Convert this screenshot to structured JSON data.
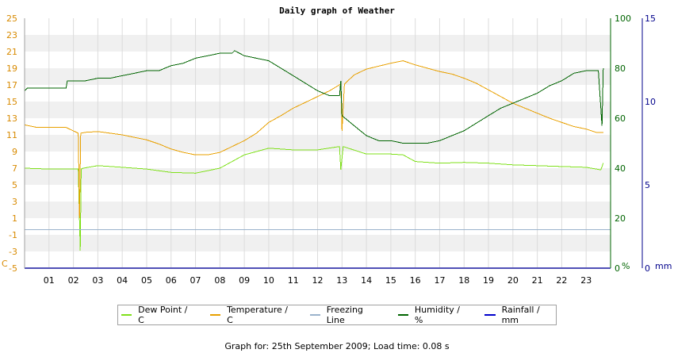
{
  "chart_data": {
    "type": "line",
    "title": "Daily graph of Weather",
    "x_ticks": [
      "01",
      "02",
      "03",
      "04",
      "05",
      "06",
      "07",
      "08",
      "09",
      "10",
      "11",
      "12",
      "13",
      "14",
      "15",
      "16",
      "17",
      "18",
      "19",
      "20",
      "21",
      "22",
      "23"
    ],
    "xlim": [
      0,
      24
    ],
    "axes": {
      "left": {
        "unit_label": "C",
        "ylim": [
          -5,
          25
        ],
        "ticks": [
          "25",
          "23",
          "21",
          "19",
          "17",
          "15",
          "13",
          "11",
          "9",
          "7",
          "5",
          "3",
          "1",
          "-1",
          "-3",
          "-5"
        ],
        "color": "#d88a00"
      },
      "right1": {
        "unit_label": "%",
        "ylim": [
          0,
          100
        ],
        "ticks": [
          "100",
          "80",
          "60",
          "40",
          "20",
          "0"
        ],
        "color": "#006400"
      },
      "right2": {
        "unit_label": "mm",
        "ylim": [
          0,
          15
        ],
        "ticks": [
          "15",
          "10",
          "5",
          "0"
        ],
        "color": "#00008b"
      }
    },
    "series": [
      {
        "name": "Dew Point / C",
        "axis": "left",
        "color": "#7fe01a",
        "x": [
          0,
          1,
          2,
          2.2,
          2.28,
          2.32,
          2.4,
          3,
          4,
          5,
          6,
          7,
          8,
          9,
          10,
          11,
          12,
          12.9,
          12.95,
          13.05,
          14,
          15,
          15.5,
          16,
          17,
          18,
          19,
          20,
          21,
          22,
          23,
          23.6,
          23.7
        ],
        "y": [
          7.0,
          6.9,
          6.9,
          6.9,
          -2.9,
          6.9,
          7.0,
          7.3,
          7.1,
          6.9,
          6.5,
          6.4,
          7.0,
          8.6,
          9.4,
          9.2,
          9.2,
          9.6,
          6.8,
          9.6,
          8.7,
          8.7,
          8.6,
          7.8,
          7.6,
          7.7,
          7.6,
          7.4,
          7.3,
          7.2,
          7.1,
          6.8,
          7.6
        ]
      },
      {
        "name": "Temperature / C",
        "axis": "left",
        "color": "#e8a000",
        "x": [
          0,
          0.5,
          1,
          1.7,
          2.2,
          2.25,
          2.3,
          2.5,
          3,
          3.5,
          4,
          5,
          5.5,
          6,
          6.5,
          7,
          7.5,
          8,
          8.5,
          9,
          9.5,
          10,
          10.5,
          11,
          11.5,
          12,
          12.5,
          12.95,
          13.0,
          13.1,
          13.5,
          14,
          15,
          15.5,
          16,
          16.5,
          17,
          17.5,
          18,
          18.5,
          19,
          19.5,
          20,
          20.5,
          21,
          21.5,
          22,
          22.5,
          23,
          23.4,
          23.7
        ],
        "y": [
          12.2,
          11.9,
          11.9,
          11.9,
          11.2,
          1.0,
          11.2,
          11.3,
          11.4,
          11.2,
          11.0,
          10.4,
          9.9,
          9.3,
          8.9,
          8.6,
          8.6,
          8.9,
          9.6,
          10.3,
          11.2,
          12.5,
          13.3,
          14.2,
          14.9,
          15.6,
          16.3,
          17.1,
          11.5,
          17.1,
          18.2,
          18.9,
          19.6,
          19.9,
          19.4,
          19.0,
          18.6,
          18.3,
          17.8,
          17.2,
          16.4,
          15.6,
          14.8,
          14.2,
          13.6,
          13.0,
          12.5,
          12.0,
          11.7,
          11.3,
          11.3
        ]
      },
      {
        "name": "Freezing Line",
        "axis": "left",
        "color": "#9ab3cc",
        "x": [
          0,
          24
        ],
        "y": [
          -0.4,
          -0.4
        ]
      },
      {
        "name": "Humidity / %",
        "axis": "right1",
        "color": "#006400",
        "x": [
          0,
          0.1,
          1,
          1.7,
          1.75,
          2,
          2.5,
          3,
          3.5,
          4,
          4.5,
          5,
          5.5,
          6,
          6.5,
          7,
          7.5,
          8,
          8.5,
          8.6,
          9,
          9.5,
          10,
          10.5,
          11,
          11.5,
          12,
          12.5,
          12.9,
          12.95,
          13.0,
          13.5,
          14,
          14.5,
          15,
          15.5,
          16,
          16.5,
          17,
          17.5,
          18,
          18.5,
          19,
          19.5,
          20,
          20.5,
          21,
          21.5,
          22,
          22.5,
          23,
          23.5,
          23.65,
          23.7
        ],
        "y": [
          71,
          72,
          72,
          72,
          75,
          75,
          75,
          76,
          76,
          77,
          78,
          79,
          79,
          81,
          82,
          84,
          85,
          86,
          86,
          87,
          85,
          84,
          83,
          80,
          77,
          74,
          71,
          69,
          69,
          75,
          61,
          57,
          53,
          51,
          51,
          50,
          50,
          50,
          51,
          53,
          55,
          58,
          61,
          64,
          66,
          68,
          70,
          73,
          75,
          78,
          79,
          79,
          57,
          80
        ]
      },
      {
        "name": "Rainfall / mm",
        "axis": "right2",
        "color": "#0000cc",
        "x": [
          0,
          24
        ],
        "y": [
          0,
          0
        ]
      }
    ],
    "grid": "horizontal bands + vertical lines",
    "legend_position": "bottom"
  },
  "footer": {
    "text": "Graph for: 25th September 2009; Load time: 0.08 s"
  }
}
